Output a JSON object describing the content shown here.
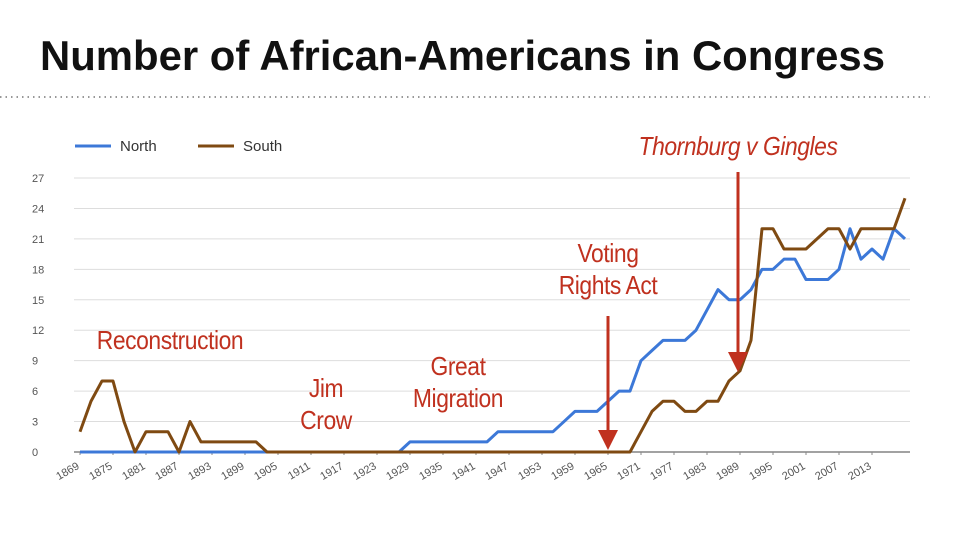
{
  "chart_data": {
    "type": "line",
    "title": "Number of African-Americans in Congress",
    "x": [
      1869,
      1871,
      1873,
      1875,
      1877,
      1879,
      1881,
      1883,
      1885,
      1887,
      1889,
      1891,
      1893,
      1895,
      1897,
      1899,
      1901,
      1903,
      1905,
      1907,
      1909,
      1911,
      1913,
      1915,
      1917,
      1919,
      1921,
      1923,
      1925,
      1927,
      1929,
      1931,
      1933,
      1935,
      1937,
      1939,
      1941,
      1943,
      1945,
      1947,
      1949,
      1951,
      1953,
      1955,
      1957,
      1959,
      1961,
      1963,
      1965,
      1967,
      1969,
      1971,
      1973,
      1975,
      1977,
      1979,
      1981,
      1983,
      1985,
      1987,
      1989,
      1991,
      1993,
      1995,
      1997,
      1999,
      2001,
      2003,
      2005,
      2007,
      2009,
      2011,
      2013,
      2015,
      2017,
      2019
    ],
    "series": [
      {
        "name": "North",
        "color": "#3c78d8",
        "values": [
          0,
          0,
          0,
          0,
          0,
          0,
          0,
          0,
          0,
          0,
          0,
          0,
          0,
          0,
          0,
          0,
          0,
          0,
          0,
          0,
          0,
          0,
          0,
          0,
          0,
          0,
          0,
          0,
          0,
          0,
          1,
          1,
          1,
          1,
          1,
          1,
          1,
          1,
          2,
          2,
          2,
          2,
          2,
          2,
          3,
          4,
          4,
          4,
          5,
          6,
          6,
          9,
          10,
          11,
          11,
          11,
          12,
          14,
          16,
          15,
          15,
          16,
          18,
          18,
          19,
          19,
          17,
          17,
          17,
          18,
          22,
          19,
          20,
          19,
          22,
          21
        ]
      },
      {
        "name": "South",
        "color": "#7f4a12",
        "values": [
          2,
          5,
          7,
          7,
          3,
          0,
          2,
          2,
          2,
          0,
          3,
          1,
          1,
          1,
          1,
          1,
          1,
          0,
          0,
          0,
          0,
          0,
          0,
          0,
          0,
          0,
          0,
          0,
          0,
          0,
          0,
          0,
          0,
          0,
          0,
          0,
          0,
          0,
          0,
          0,
          0,
          0,
          0,
          0,
          0,
          0,
          0,
          0,
          0,
          0,
          0,
          2,
          4,
          5,
          5,
          4,
          4,
          5,
          5,
          7,
          8,
          11,
          22,
          22,
          20,
          20,
          20,
          21,
          22,
          22,
          20,
          22,
          22,
          22,
          22,
          25
        ]
      }
    ],
    "xlim": [
      1869,
      2019
    ],
    "xticks": [
      1869,
      1875,
      1881,
      1887,
      1893,
      1899,
      1905,
      1911,
      1917,
      1923,
      1929,
      1935,
      1941,
      1947,
      1953,
      1959,
      1965,
      1971,
      1977,
      1983,
      1989,
      1995,
      2001,
      2007,
      2013
    ],
    "ylim": [
      0,
      27
    ],
    "yticks": [
      0,
      3,
      6,
      9,
      12,
      15,
      18,
      21,
      24,
      27
    ],
    "grid": true,
    "legend": "top-left",
    "annotations": [
      "Reconstruction",
      "Jim Crow",
      "Great Migration",
      "Voting Rights Act",
      "Thornburg v Gingles"
    ]
  }
}
